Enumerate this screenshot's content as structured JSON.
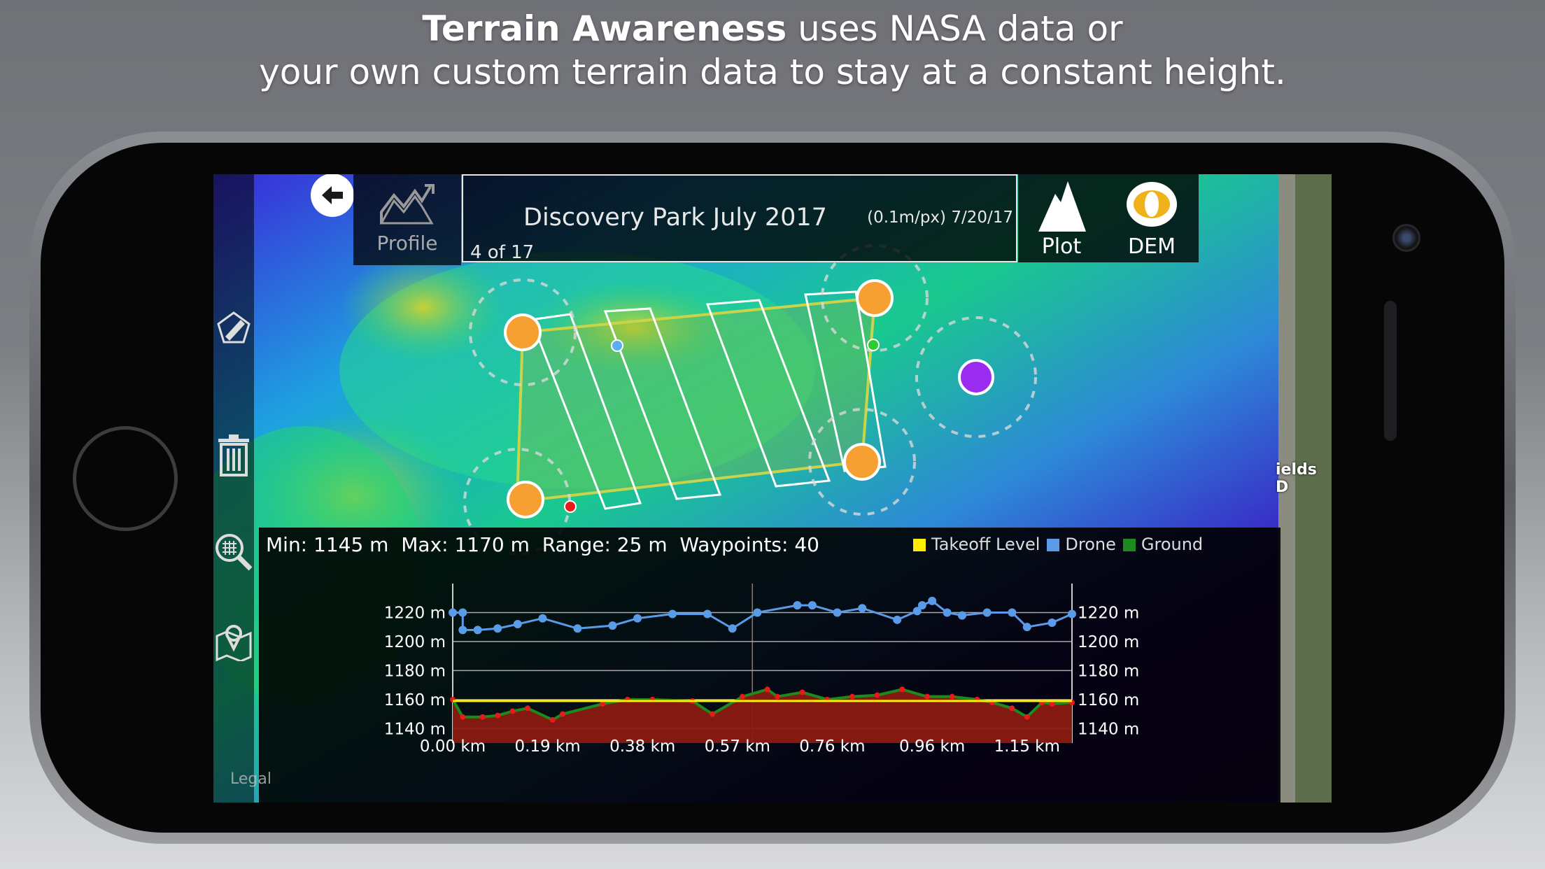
{
  "headline": {
    "bold": "Terrain Awareness",
    "line1_rest": " uses NASA data or",
    "line2": "your own custom terrain data to stay at a constant height."
  },
  "toolbar": {
    "profile_label": "Profile",
    "mission_title": "Discovery Park July 2017",
    "mission_meta": "(0.1m/px) 7/20/17",
    "mission_count": "4 of 17",
    "plot_label": "Plot",
    "dem_label": "DEM"
  },
  "sidebar": {
    "icons": [
      "edit-polygon-icon",
      "trash-icon",
      "zoom-grid-icon",
      "map-pin-icon"
    ]
  },
  "map": {
    "legal": "Legal",
    "street_label": "ields D"
  },
  "colors": {
    "takeoff": "#ffee00",
    "drone": "#5a9be8",
    "ground": "#1c8a1c",
    "waypoint": "#f5a030",
    "poi": "#9a2cf0"
  },
  "chart_data": {
    "type": "line",
    "stats": "Min: 1145 m  Max: 1170 m  Range: 25 m  Waypoints: 40",
    "legend": [
      "Takeoff Level",
      "Drone",
      "Ground"
    ],
    "xlabel_ticks": [
      "0.00 km",
      "0.19 km",
      "0.38 km",
      "0.57 km",
      "0.76 km",
      "0.96 km",
      "1.15 km"
    ],
    "y_ticks": [
      "1220 m",
      "1200 m",
      "1180 m",
      "1160 m",
      "1140 m"
    ],
    "ylim": [
      1130,
      1240
    ],
    "xlim": [
      0,
      1.24
    ],
    "takeoff_level": 1159,
    "series": [
      {
        "name": "Drone",
        "x": [
          0,
          0.02,
          0.02,
          0.05,
          0.09,
          0.13,
          0.18,
          0.25,
          0.32,
          0.37,
          0.44,
          0.51,
          0.56,
          0.61,
          0.69,
          0.72,
          0.77,
          0.82,
          0.89,
          0.93,
          0.94,
          0.96,
          0.99,
          1.02,
          1.07,
          1.12,
          1.15,
          1.2,
          1.24
        ],
        "y": [
          1220,
          1220,
          1208,
          1208,
          1209,
          1212,
          1216,
          1209,
          1211,
          1216,
          1219,
          1219,
          1209,
          1220,
          1225,
          1225,
          1220,
          1223,
          1215,
          1221,
          1225,
          1228,
          1220,
          1218,
          1220,
          1220,
          1210,
          1213,
          1219
        ]
      },
      {
        "name": "Ground",
        "x": [
          0,
          0.02,
          0.06,
          0.09,
          0.12,
          0.15,
          0.2,
          0.22,
          0.3,
          0.35,
          0.4,
          0.48,
          0.52,
          0.58,
          0.63,
          0.65,
          0.7,
          0.75,
          0.8,
          0.85,
          0.9,
          0.95,
          1.0,
          1.05,
          1.08,
          1.12,
          1.15,
          1.18,
          1.2,
          1.24
        ],
        "y": [
          1160,
          1148,
          1148,
          1149,
          1152,
          1154,
          1146,
          1150,
          1157,
          1160,
          1160,
          1159,
          1150,
          1162,
          1167,
          1162,
          1165,
          1160,
          1162,
          1163,
          1167,
          1162,
          1162,
          1160,
          1158,
          1154,
          1148,
          1158,
          1157,
          1158
        ]
      }
    ]
  }
}
